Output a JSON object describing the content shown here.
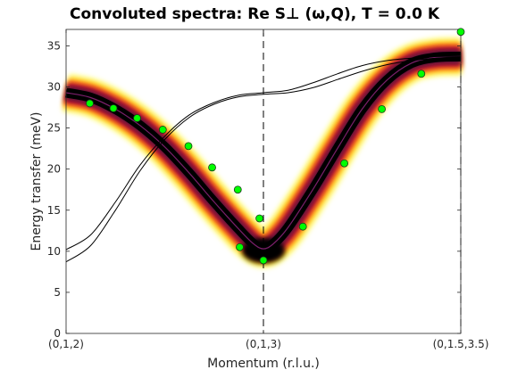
{
  "chart_data": {
    "type": "line",
    "title": "Convoluted spectra: Re S⊥ (ω,Q), T =   0.0 K",
    "xlabel": "Momentum (r.l.u.)",
    "ylabel": "Energy transfer (meV)",
    "xlim": [
      0,
      2
    ],
    "ylim": [
      0,
      37
    ],
    "x_ticks": [
      {
        "x": 0,
        "label": "(0,1,2)"
      },
      {
        "x": 1,
        "label": "(0,1,3)"
      },
      {
        "x": 2,
        "label": "(0,1.5,3.5)"
      }
    ],
    "y_ticks": [
      0,
      5,
      10,
      15,
      20,
      25,
      30,
      35
    ],
    "vertical_dashed_lines": [
      1,
      2
    ],
    "grid": false,
    "colormap": [
      "#000000",
      "#5a0a3a",
      "#b8142e",
      "#ff5a1e",
      "#ffd21e",
      "#ffff9a",
      "#ffffff"
    ],
    "series": [
      {
        "kind": "convoluted-spectrum-band",
        "x": [
          0,
          0.125,
          0.25,
          0.375,
          0.5,
          0.625,
          0.75,
          0.875,
          0.95,
          1.0,
          1.05,
          1.125,
          1.25,
          1.375,
          1.5,
          1.625,
          1.75,
          1.875,
          2.0
        ],
        "y": [
          29.3,
          28.7,
          27.3,
          25.3,
          22.7,
          19.5,
          16.0,
          12.7,
          10.9,
          10.3,
          10.9,
          12.9,
          17.5,
          22.5,
          27.3,
          30.8,
          32.9,
          33.6,
          33.7
        ]
      },
      {
        "kind": "dispersion-line",
        "x": [
          0,
          0.125,
          0.25,
          0.375,
          0.5,
          0.625,
          0.75,
          0.875,
          1.0,
          1.125,
          1.25,
          1.375,
          1.5,
          1.625,
          1.75,
          1.875,
          2.0
        ],
        "y": [
          10.2,
          12.0,
          16.0,
          20.5,
          24.0,
          26.6,
          28.1,
          29.0,
          29.3,
          29.6,
          30.5,
          31.6,
          32.6,
          33.2,
          33.5,
          33.7,
          33.7
        ]
      },
      {
        "kind": "dispersion-line",
        "x": [
          0,
          0.125,
          0.25,
          0.375,
          0.5,
          0.625,
          0.75,
          0.875,
          1.0,
          1.125,
          1.25,
          1.375,
          1.5,
          1.625,
          1.75,
          1.875,
          2.0
        ],
        "y": [
          8.7,
          10.7,
          15.0,
          19.8,
          23.6,
          26.3,
          27.9,
          28.8,
          29.1,
          29.3,
          29.9,
          30.9,
          31.9,
          32.7,
          33.2,
          33.5,
          33.6
        ]
      },
      {
        "kind": "data-points",
        "x": [
          0.12,
          0.24,
          0.36,
          0.49,
          0.62,
          0.74,
          0.87,
          0.98,
          0.88,
          1.0,
          1.2,
          1.41,
          1.6,
          1.8,
          2.0
        ],
        "y": [
          28.0,
          27.4,
          26.2,
          24.8,
          22.8,
          20.2,
          17.5,
          14.0,
          10.5,
          8.9,
          13.0,
          20.7,
          27.3,
          31.6,
          36.7
        ]
      }
    ]
  }
}
